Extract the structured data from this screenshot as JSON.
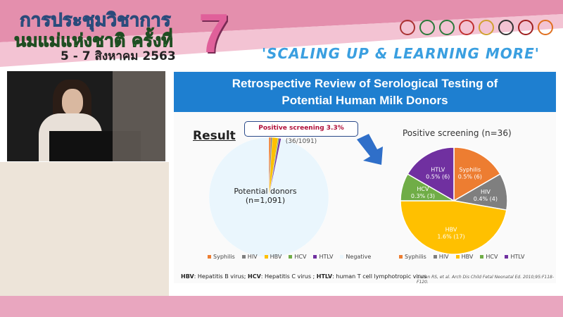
{
  "event": {
    "title_line1": "การประชุมวิชาการ",
    "title_line2": "นมแม่แห่งชาติ ครั้งที่",
    "number": "7",
    "dates": "5 - 7 สิงหาคม 2563",
    "slogan": "'SCALING UP & LEARNING MORE'"
  },
  "colors": {
    "syphilis": "#ed7d31",
    "hiv": "#7f7f7f",
    "hbv": "#ffc000",
    "hcv": "#70ad47",
    "htlv": "#7030a0",
    "negative": "#eaf6fd",
    "header": "#1e7fd0"
  },
  "slide": {
    "title_line1": "Retrospective Review of Serological Testing of",
    "title_line2": "Potential Human Milk Donors",
    "result_label": "Result",
    "callout_bold": "Positive screening 3.3%",
    "callout_rest": " (36/1091)",
    "left_center_label": "Potential donors",
    "left_center_n": "(n=1,091)",
    "right_title": "Positive screening (n=36)",
    "footnote_parts": [
      {
        "b": "HBV",
        "t": ": Hepatitis B virus; "
      },
      {
        "b": "HCV",
        "t": ": Hepatitis C virus ; "
      },
      {
        "b": "HTLV",
        "t": ": human T cell lymphotropic virus"
      }
    ],
    "citation": "Cohen RS, et al. Arch Dis Child Fetal Neonatal Ed. 2010;95:F118-F120."
  },
  "chart_data": [
    {
      "type": "pie",
      "categories": [
        "Syphilis",
        "HIV",
        "HBV",
        "HCV",
        "HTLV",
        "Negative"
      ],
      "values": [
        6,
        4,
        17,
        3,
        6,
        1055
      ],
      "legend": [
        "Syphilis",
        "HIV",
        "HBV",
        "HCV",
        "HTLV",
        "Negative"
      ],
      "legend_placement": "bottom"
    },
    {
      "type": "pie",
      "title": "Positive screening (n=36)",
      "categories": [
        "Syphilis",
        "HIV",
        "HBV",
        "HCV",
        "HTLV"
      ],
      "values": [
        6,
        4,
        17,
        3,
        6
      ],
      "labels": [
        "0.5% (6)",
        "0.4% (4)",
        "1.6% (17)",
        "0.3% (3)",
        "0.5% (6)"
      ],
      "legend": [
        "Syphilis",
        "HIV",
        "HBV",
        "HCV",
        "HTLV"
      ],
      "legend_placement": "bottom"
    }
  ]
}
